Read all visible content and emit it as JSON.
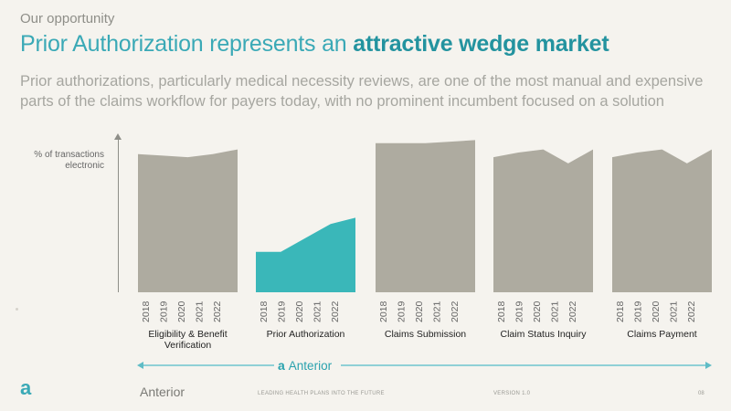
{
  "header": {
    "eyebrow": "Our opportunity",
    "title_plain": "Prior Authorization represents an ",
    "title_bold": "attractive wedge market",
    "subtitle": "Prior authorizations, particularly medical necessity reviews, are one of the most manual and expensive parts of the claims workflow for payers today, with no prominent incumbent focused on a solution"
  },
  "chart_data": {
    "type": "area",
    "ylabel": "% of transactions electronic",
    "years": [
      "2018",
      "2019",
      "2020",
      "2021",
      "2022"
    ],
    "ylim": [
      0,
      100
    ],
    "grid": false,
    "colors": {
      "default": "#aeaba0",
      "highlight": "#3ab7b9"
    },
    "panels": [
      {
        "category": "Eligibility & Benefit Verification",
        "values": [
          89,
          88,
          87,
          89,
          92
        ],
        "highlight": false
      },
      {
        "category": "Prior Authorization",
        "values": [
          26,
          26,
          35,
          44,
          48
        ],
        "highlight": true
      },
      {
        "category": "Claims Submission",
        "values": [
          96,
          96,
          96,
          97,
          98
        ],
        "highlight": false
      },
      {
        "category": "Claim Status Inquiry",
        "values": [
          87,
          90,
          92,
          83,
          92
        ],
        "highlight": false
      },
      {
        "category": "Claims Payment",
        "values": [
          87,
          90,
          92,
          83,
          92
        ],
        "highlight": false
      }
    ]
  },
  "bracket": {
    "glyph": "a",
    "label": "Anterior"
  },
  "footer": {
    "logo_glyph": "a",
    "brand": "Anterior",
    "tagline": "LEADING HEALTH PLANS INTO THE FUTURE",
    "version": "VERSION 1.0",
    "page": "08"
  }
}
